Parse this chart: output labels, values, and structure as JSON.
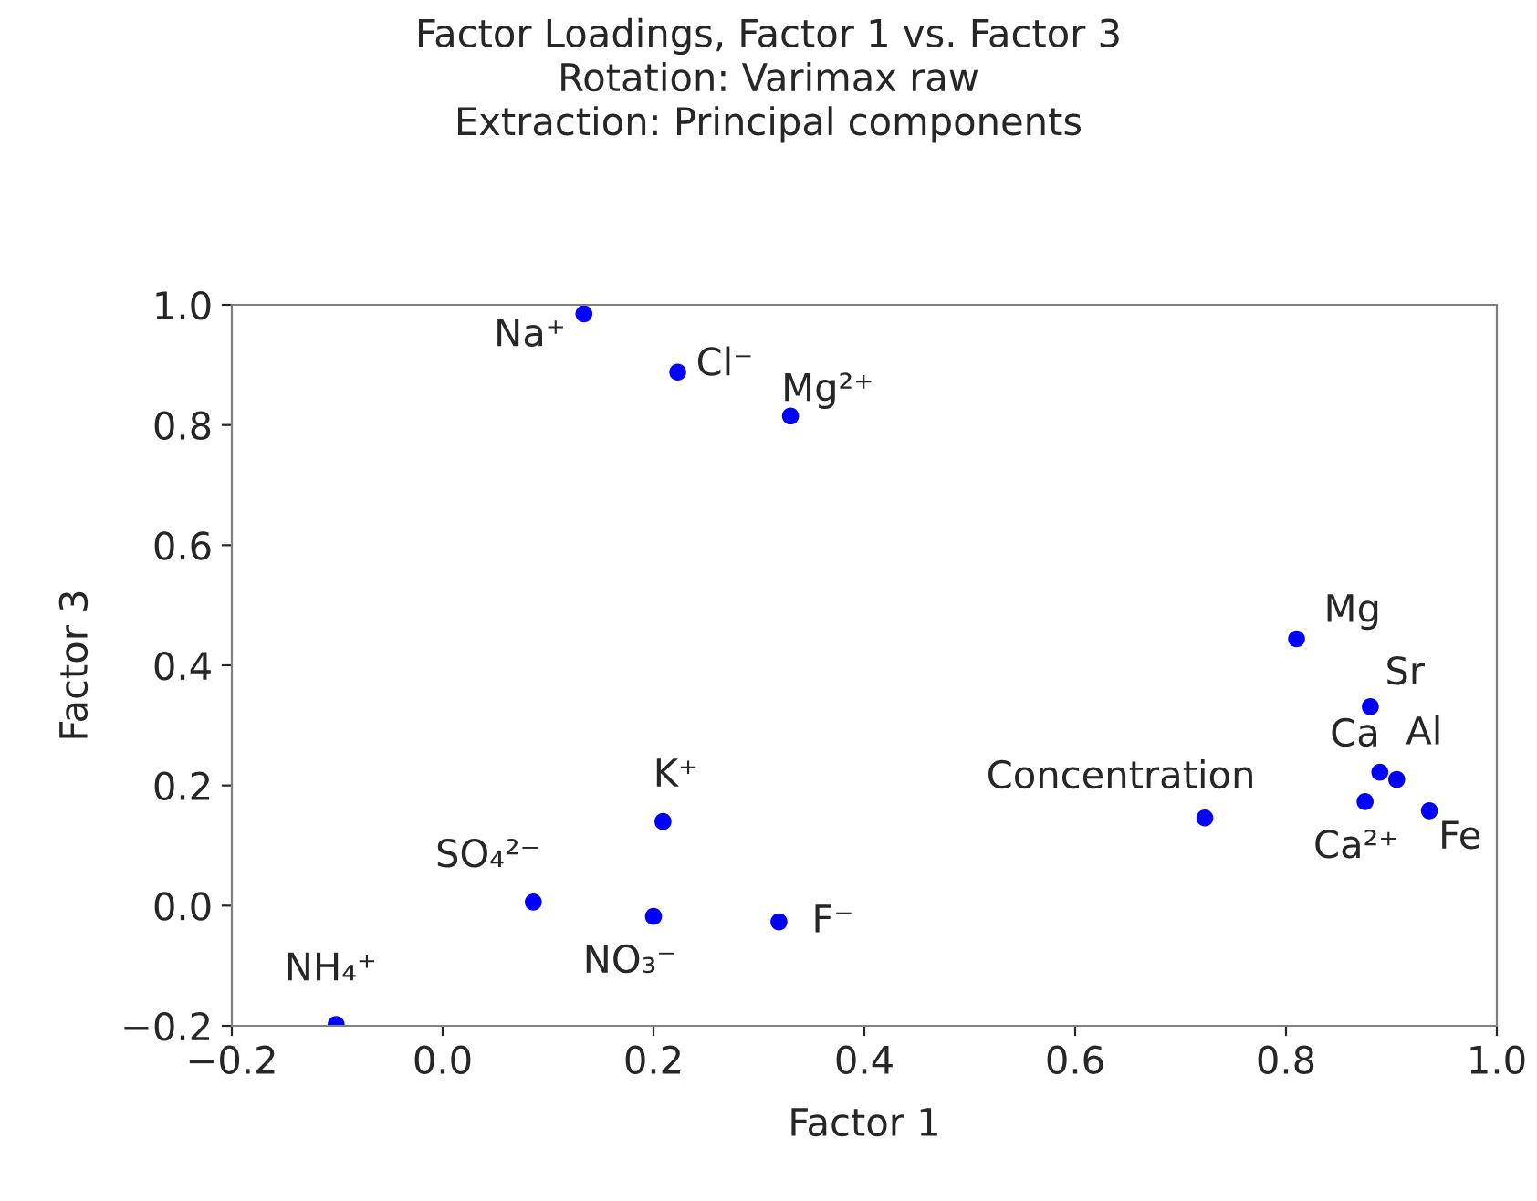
{
  "chart_data": {
    "type": "scatter",
    "title": "Factor Loadings, Factor 1 vs. Factor 3\nRotation: Varimax raw\nExtraction: Principal components",
    "xlabel": "Factor 1",
    "ylabel": "Factor 3",
    "x": [
      0.134,
      0.223,
      0.33,
      0.81,
      0.88,
      0.889,
      0.905,
      0.875,
      0.936,
      0.723,
      0.209,
      0.086,
      0.2,
      0.319,
      -0.101
    ],
    "series": [
      {
        "color": "#0000ff",
        "values": [
          0.985,
          0.888,
          0.815,
          0.444,
          0.331,
          0.222,
          0.21,
          0.173,
          0.158,
          0.146,
          0.14,
          0.006,
          -0.018,
          -0.027,
          -0.198
        ]
      }
    ],
    "annotations": [
      {
        "text": "Na⁺",
        "x": 0.134,
        "y": 0.985
      },
      {
        "text": "Cl⁻",
        "x": 0.223,
        "y": 0.888
      },
      {
        "text": "Mg²⁺",
        "x": 0.33,
        "y": 0.815
      },
      {
        "text": "Mg",
        "x": 0.81,
        "y": 0.444
      },
      {
        "text": "Sr",
        "x": 0.88,
        "y": 0.331
      },
      {
        "text": "Ca",
        "x": 0.889,
        "y": 0.222
      },
      {
        "text": "Al",
        "x": 0.905,
        "y": 0.21
      },
      {
        "text": "Ca²⁺",
        "x": 0.875,
        "y": 0.173
      },
      {
        "text": "Fe",
        "x": 0.936,
        "y": 0.158
      },
      {
        "text": "Concentration",
        "x": 0.723,
        "y": 0.146
      },
      {
        "text": "K⁺",
        "x": 0.209,
        "y": 0.14
      },
      {
        "text": "SO₄²⁻",
        "x": 0.086,
        "y": 0.006
      },
      {
        "text": "NO₃⁻",
        "x": 0.2,
        "y": -0.018
      },
      {
        "text": "F⁻",
        "x": 0.319,
        "y": -0.027
      },
      {
        "text": "NH₄⁺",
        "x": -0.101,
        "y": -0.198
      }
    ],
    "xlim": [
      -0.2,
      1.0
    ],
    "ylim": [
      -0.2,
      1.0
    ],
    "xticks": [
      {
        "value": -0.2,
        "label": "−0.2"
      },
      {
        "value": 0,
        "label": "0.0"
      },
      {
        "value": 0.2,
        "label": "0.2"
      },
      {
        "value": 0.4,
        "label": "0.4"
      },
      {
        "value": 0.6,
        "label": "0.6"
      },
      {
        "value": 0.8,
        "label": "0.8"
      },
      {
        "value": 1.0,
        "label": "1.0"
      }
    ],
    "yticks": [
      {
        "value": -0.2,
        "label": "−0.2"
      },
      {
        "value": 0,
        "label": "0.0"
      },
      {
        "value": 0.2,
        "label": "0.2"
      },
      {
        "value": 0.4,
        "label": "0.4"
      },
      {
        "value": 0.6,
        "label": "0.6"
      },
      {
        "value": 0.8,
        "label": "0.8"
      },
      {
        "value": 1.0,
        "label": "1.0"
      }
    ],
    "grid": false,
    "marker": "circle"
  }
}
